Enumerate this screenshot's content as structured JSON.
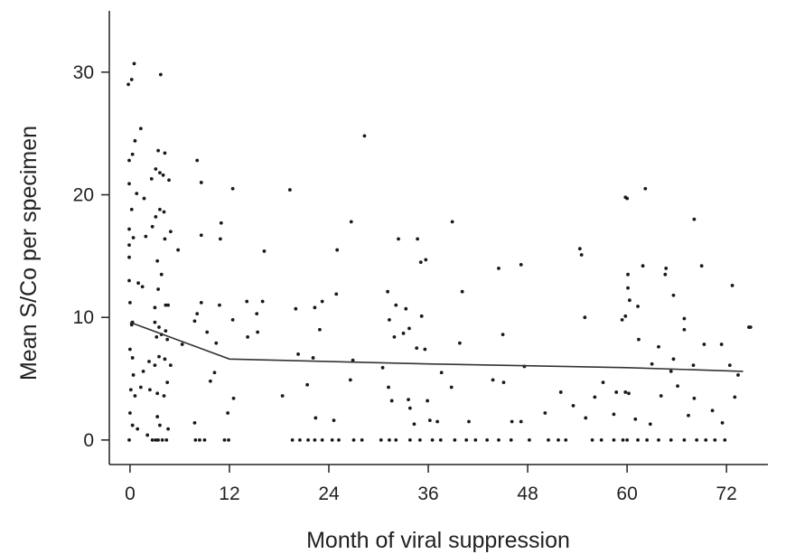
{
  "chart_data": {
    "type": "scatter",
    "title": "",
    "xlabel": "Month of viral suppression",
    "ylabel": "Mean S/Co per specimen",
    "xlim": [
      -2.5,
      77
    ],
    "ylim": [
      -2,
      35
    ],
    "xticks": [
      0,
      12,
      24,
      36,
      48,
      60,
      72
    ],
    "yticks": [
      0,
      10,
      20,
      30
    ],
    "grid": false,
    "series": [
      {
        "kind": "points",
        "points": [
          [
            0.5,
            30.7
          ],
          [
            0.2,
            29.4
          ],
          [
            3.7,
            29.8
          ],
          [
            -0.2,
            29.0
          ],
          [
            1.3,
            25.4
          ],
          [
            0.6,
            24.4
          ],
          [
            0.3,
            23.3
          ],
          [
            -0.1,
            22.8
          ],
          [
            3.4,
            23.6
          ],
          [
            4.2,
            23.4
          ],
          [
            3.1,
            22.1
          ],
          [
            3.6,
            21.8
          ],
          [
            4.0,
            21.6
          ],
          [
            2.6,
            21.3
          ],
          [
            4.7,
            21.2
          ],
          [
            -0.1,
            20.9
          ],
          [
            8.1,
            22.8
          ],
          [
            8.6,
            21.0
          ],
          [
            12.4,
            20.5
          ],
          [
            19.3,
            20.4
          ],
          [
            28.3,
            24.8
          ],
          [
            0.8,
            20.1
          ],
          [
            1.7,
            19.7
          ],
          [
            0.2,
            18.8
          ],
          [
            3.6,
            18.8
          ],
          [
            4.1,
            18.6
          ],
          [
            3.1,
            18.2
          ],
          [
            -0.1,
            17.2
          ],
          [
            2.7,
            17.4
          ],
          [
            11.0,
            17.7
          ],
          [
            0.4,
            16.5
          ],
          [
            1.9,
            16.6
          ],
          [
            4.2,
            16.4
          ],
          [
            4.9,
            17.0
          ],
          [
            8.6,
            16.7
          ],
          [
            10.9,
            16.4
          ],
          [
            16.2,
            15.4
          ],
          [
            -0.1,
            15.9
          ],
          [
            -0.1,
            14.9
          ],
          [
            3.3,
            14.6
          ],
          [
            5.8,
            15.5
          ],
          [
            26.7,
            17.8
          ],
          [
            25.0,
            15.5
          ],
          [
            32.4,
            16.4
          ],
          [
            34.7,
            16.4
          ],
          [
            35.1,
            14.5
          ],
          [
            35.7,
            14.7
          ],
          [
            38.9,
            17.8
          ],
          [
            44.5,
            14.0
          ],
          [
            47.2,
            14.3
          ],
          [
            54.3,
            15.6
          ],
          [
            54.5,
            15.1
          ],
          [
            59.8,
            19.8
          ],
          [
            60.0,
            19.7
          ],
          [
            60.1,
            13.5
          ],
          [
            62.2,
            20.5
          ],
          [
            61.9,
            14.2
          ],
          [
            64.7,
            14.0
          ],
          [
            64.6,
            13.5
          ],
          [
            68.1,
            18.0
          ],
          [
            69.0,
            14.2
          ],
          [
            72.7,
            12.6
          ],
          [
            -0.1,
            13.0
          ],
          [
            1.0,
            12.8
          ],
          [
            3.8,
            13.5
          ],
          [
            3.4,
            12.3
          ],
          [
            1.5,
            12.5
          ],
          [
            3.0,
            10.8
          ],
          [
            4.3,
            11.0
          ],
          [
            4.6,
            11.0
          ],
          [
            0.0,
            11.2
          ],
          [
            8.6,
            11.2
          ],
          [
            10.8,
            11.0
          ],
          [
            14.1,
            11.3
          ],
          [
            15.3,
            10.3
          ],
          [
            16.0,
            11.3
          ],
          [
            20.0,
            10.7
          ],
          [
            22.3,
            10.8
          ],
          [
            23.2,
            11.3
          ],
          [
            24.9,
            11.9
          ],
          [
            31.1,
            12.1
          ],
          [
            32.1,
            11.0
          ],
          [
            33.3,
            10.7
          ],
          [
            35.2,
            10.1
          ],
          [
            40.1,
            12.1
          ],
          [
            54.9,
            10.0
          ],
          [
            59.8,
            10.1
          ],
          [
            60.1,
            12.4
          ],
          [
            60.3,
            11.4
          ],
          [
            61.3,
            10.9
          ],
          [
            65.6,
            11.8
          ],
          [
            66.9,
            9.9
          ],
          [
            0.2,
            9.4
          ],
          [
            0.3,
            9.6
          ],
          [
            3.0,
            9.6
          ],
          [
            3.5,
            9.2
          ],
          [
            3.2,
            8.4
          ],
          [
            3.8,
            8.6
          ],
          [
            4.3,
            8.9
          ],
          [
            4.5,
            8.2
          ],
          [
            6.3,
            7.8
          ],
          [
            7.8,
            9.7
          ],
          [
            8.1,
            10.3
          ],
          [
            9.3,
            8.8
          ],
          [
            12.4,
            9.8
          ],
          [
            14.2,
            8.4
          ],
          [
            15.4,
            8.8
          ],
          [
            10.4,
            7.9
          ],
          [
            20.3,
            7.0
          ],
          [
            22.1,
            6.7
          ],
          [
            22.9,
            9.0
          ],
          [
            26.9,
            6.5
          ],
          [
            31.3,
            9.8
          ],
          [
            31.9,
            8.4
          ],
          [
            33.0,
            8.7
          ],
          [
            33.7,
            9.1
          ],
          [
            34.6,
            7.5
          ],
          [
            35.6,
            7.4
          ],
          [
            37.6,
            5.5
          ],
          [
            39.8,
            7.9
          ],
          [
            45.0,
            8.6
          ],
          [
            47.6,
            6.0
          ],
          [
            59.4,
            9.8
          ],
          [
            61.4,
            8.2
          ],
          [
            63.0,
            6.2
          ],
          [
            63.8,
            7.6
          ],
          [
            65.3,
            5.6
          ],
          [
            65.6,
            6.6
          ],
          [
            66.9,
            9.0
          ],
          [
            68.0,
            6.1
          ],
          [
            69.3,
            7.8
          ],
          [
            71.4,
            7.8
          ],
          [
            72.4,
            6.1
          ],
          [
            74.7,
            9.2
          ],
          [
            74.9,
            9.2
          ],
          [
            0.0,
            7.4
          ],
          [
            0.3,
            6.7
          ],
          [
            0.4,
            5.3
          ],
          [
            1.6,
            5.6
          ],
          [
            2.3,
            6.4
          ],
          [
            3.0,
            6.1
          ],
          [
            3.5,
            6.8
          ],
          [
            4.2,
            6.6
          ],
          [
            4.9,
            6.1
          ],
          [
            0.1,
            4.1
          ],
          [
            0.6,
            3.6
          ],
          [
            1.3,
            4.3
          ],
          [
            2.4,
            4.1
          ],
          [
            3.3,
            3.8
          ],
          [
            4.1,
            3.6
          ],
          [
            4.5,
            4.7
          ],
          [
            9.7,
            4.8
          ],
          [
            10.2,
            5.5
          ],
          [
            11.8,
            2.2
          ],
          [
            12.5,
            3.4
          ],
          [
            18.4,
            3.6
          ],
          [
            21.4,
            4.5
          ],
          [
            22.4,
            1.8
          ],
          [
            24.6,
            1.6
          ],
          [
            26.6,
            4.9
          ],
          [
            30.5,
            5.9
          ],
          [
            31.2,
            4.3
          ],
          [
            31.6,
            3.2
          ],
          [
            33.6,
            3.3
          ],
          [
            33.8,
            2.6
          ],
          [
            34.3,
            1.3
          ],
          [
            35.9,
            3.2
          ],
          [
            36.2,
            1.6
          ],
          [
            37.1,
            1.5
          ],
          [
            38.8,
            4.3
          ],
          [
            40.9,
            1.5
          ],
          [
            43.8,
            4.9
          ],
          [
            45.1,
            4.7
          ],
          [
            46.1,
            1.5
          ],
          [
            47.2,
            1.5
          ],
          [
            50.1,
            2.2
          ],
          [
            52.0,
            3.9
          ],
          [
            53.5,
            2.8
          ],
          [
            55.0,
            1.8
          ],
          [
            56.1,
            3.5
          ],
          [
            57.1,
            4.7
          ],
          [
            58.4,
            2.1
          ],
          [
            58.7,
            3.9
          ],
          [
            59.8,
            3.9
          ],
          [
            60.2,
            3.8
          ],
          [
            61.0,
            1.7
          ],
          [
            62.8,
            1.3
          ],
          [
            64.1,
            3.6
          ],
          [
            66.1,
            4.4
          ],
          [
            67.4,
            2.0
          ],
          [
            68.1,
            3.4
          ],
          [
            70.3,
            2.4
          ],
          [
            71.5,
            1.4
          ],
          [
            73.0,
            3.5
          ],
          [
            73.4,
            5.3
          ],
          [
            0.0,
            2.2
          ],
          [
            0.3,
            1.2
          ],
          [
            0.9,
            0.9
          ],
          [
            2.1,
            0.4
          ],
          [
            3.3,
            1.9
          ],
          [
            3.6,
            1.2
          ],
          [
            4.6,
            0.9
          ],
          [
            7.8,
            1.4
          ],
          [
            -0.1,
            0.0
          ],
          [
            2.7,
            0.0
          ],
          [
            3.1,
            0.0
          ],
          [
            3.4,
            0.0
          ],
          [
            3.9,
            0.0
          ],
          [
            4.4,
            0.0
          ],
          [
            7.9,
            0.0
          ],
          [
            8.4,
            0.0
          ],
          [
            9.0,
            0.0
          ],
          [
            11.4,
            0.0
          ],
          [
            11.9,
            0.0
          ],
          [
            19.6,
            0.0
          ],
          [
            20.5,
            0.0
          ],
          [
            21.5,
            0.0
          ],
          [
            22.3,
            0.0
          ],
          [
            23.2,
            0.0
          ],
          [
            24.4,
            0.0
          ],
          [
            25.2,
            0.0
          ],
          [
            27.0,
            0.0
          ],
          [
            28.0,
            0.0
          ],
          [
            30.3,
            0.0
          ],
          [
            31.3,
            0.0
          ],
          [
            32.1,
            0.0
          ],
          [
            33.8,
            0.0
          ],
          [
            35.0,
            0.0
          ],
          [
            36.5,
            0.0
          ],
          [
            37.5,
            0.0
          ],
          [
            39.2,
            0.0
          ],
          [
            40.6,
            0.0
          ],
          [
            41.7,
            0.0
          ],
          [
            43.1,
            0.0
          ],
          [
            44.5,
            0.0
          ],
          [
            46.0,
            0.0
          ],
          [
            48.2,
            0.0
          ],
          [
            50.5,
            0.0
          ],
          [
            51.7,
            0.0
          ],
          [
            52.6,
            0.0
          ],
          [
            55.8,
            0.0
          ],
          [
            56.9,
            0.0
          ],
          [
            58.4,
            0.0
          ],
          [
            59.5,
            0.0
          ],
          [
            60.0,
            0.0
          ],
          [
            61.3,
            0.0
          ],
          [
            62.4,
            0.0
          ],
          [
            63.8,
            0.0
          ],
          [
            65.3,
            0.0
          ],
          [
            66.9,
            0.0
          ],
          [
            68.4,
            0.0
          ],
          [
            69.5,
            0.0
          ],
          [
            70.6,
            0.0
          ],
          [
            71.8,
            0.0
          ]
        ]
      },
      {
        "kind": "line",
        "points": [
          [
            0,
            9.6
          ],
          [
            12,
            6.6
          ],
          [
            36,
            6.2
          ],
          [
            60,
            5.9
          ],
          [
            74,
            5.6
          ]
        ]
      }
    ]
  }
}
